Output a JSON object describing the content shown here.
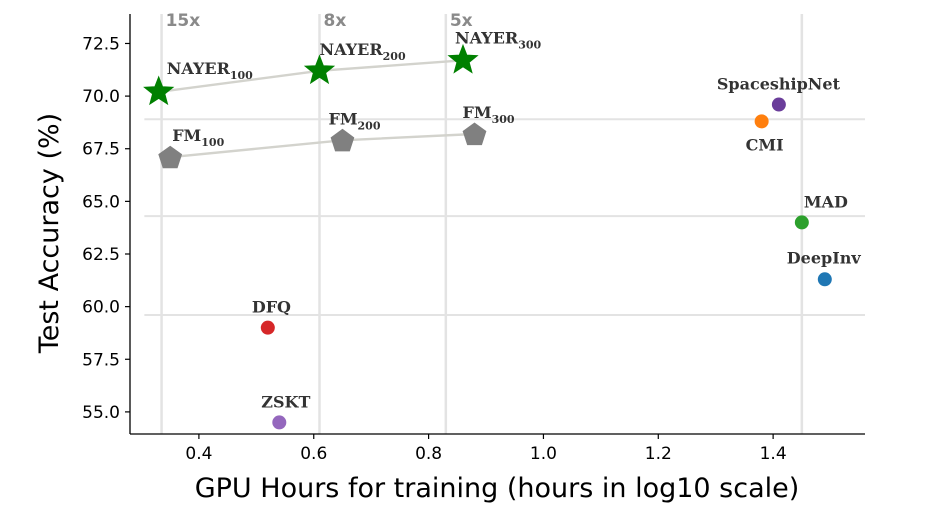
{
  "chart_data": {
    "type": "scatter",
    "xlabel": "GPU Hours for training (hours in log10 scale)",
    "ylabel": "Test Accuracy (%)",
    "xlim": [
      0.28,
      1.56
    ],
    "ylim": [
      53.95,
      73.9
    ],
    "x_ticks": [
      0.4,
      0.6,
      0.8,
      1.0,
      1.2,
      1.4
    ],
    "x_tick_labels": [
      "0.4",
      "0.6",
      "0.8",
      "1.0",
      "1.2",
      "1.4"
    ],
    "y_ticks": [
      55.0,
      57.5,
      60.0,
      62.5,
      65.0,
      67.5,
      70.0,
      72.5
    ],
    "y_tick_labels": [
      "55.0",
      "57.5",
      "60.0",
      "62.5",
      "65.0",
      "67.5",
      "70.0",
      "72.5"
    ],
    "grid": false,
    "vertical_lines": [
      {
        "x": 0.335,
        "label": "15x"
      },
      {
        "x": 0.61,
        "label": "8x"
      },
      {
        "x": 0.83,
        "label": "5x"
      },
      {
        "x": 1.45,
        "label": ""
      }
    ],
    "horizontal_lines": [
      {
        "y": 68.9,
        "from_x": 0.305,
        "to_x": 1.56
      },
      {
        "y": 64.3,
        "from_x": 0.305,
        "to_x": 1.56
      },
      {
        "y": 59.6,
        "from_x": 0.305,
        "to_x": 1.56
      }
    ],
    "series": [
      {
        "marker": "star",
        "color": "#008000",
        "connected": true,
        "points": [
          {
            "x": 0.33,
            "y": 70.2,
            "label": "NAYER",
            "sub": "100"
          },
          {
            "x": 0.61,
            "y": 71.2,
            "label": "NAYER",
            "sub": "200"
          },
          {
            "x": 0.86,
            "y": 71.7,
            "label": "NAYER",
            "sub": "300"
          }
        ]
      },
      {
        "marker": "pentagon",
        "color": "#808080",
        "connected": true,
        "points": [
          {
            "x": 0.35,
            "y": 67.1,
            "label": "FM",
            "sub": "100"
          },
          {
            "x": 0.65,
            "y": 67.9,
            "label": "FM",
            "sub": "200"
          },
          {
            "x": 0.88,
            "y": 68.2,
            "label": "FM",
            "sub": "300"
          }
        ]
      },
      {
        "marker": "circle",
        "color": "#6a3d9a",
        "points": [
          {
            "x": 1.41,
            "y": 69.6,
            "label": "SpaceshipNet"
          }
        ]
      },
      {
        "marker": "circle",
        "color": "#ff7f0e",
        "points": [
          {
            "x": 1.38,
            "y": 68.8,
            "label": "CMI"
          }
        ]
      },
      {
        "marker": "circle",
        "color": "#2ca02c",
        "points": [
          {
            "x": 1.45,
            "y": 64.0,
            "label": "MAD"
          }
        ]
      },
      {
        "marker": "circle",
        "color": "#1f77b4",
        "points": [
          {
            "x": 1.49,
            "y": 61.3,
            "label": "DeepInv"
          }
        ]
      },
      {
        "marker": "circle",
        "color": "#d62728",
        "points": [
          {
            "x": 0.52,
            "y": 59.0,
            "label": "DFQ"
          }
        ]
      },
      {
        "marker": "circle",
        "color": "#9467bd",
        "points": [
          {
            "x": 0.54,
            "y": 54.5,
            "label": "ZSKT"
          }
        ]
      }
    ]
  }
}
